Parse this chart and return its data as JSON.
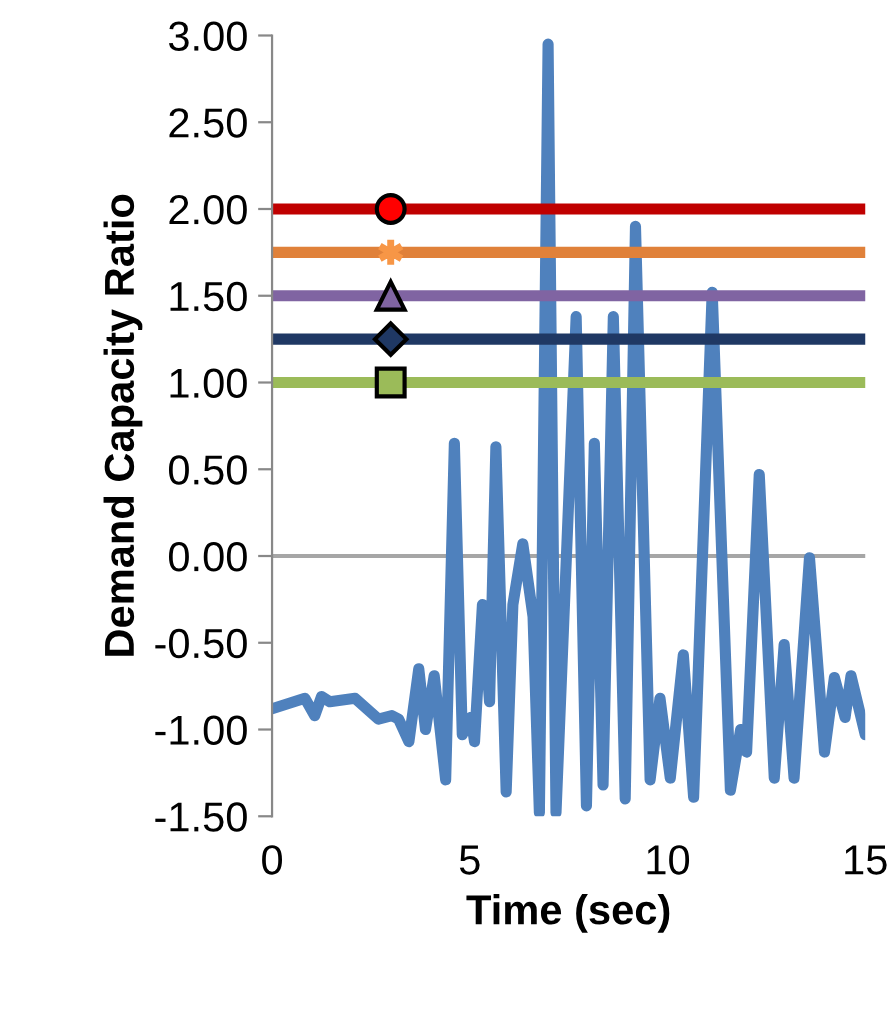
{
  "chart_data": {
    "type": "line",
    "xlabel": "Time (sec)",
    "ylabel": "Demand Capacity Ratio",
    "xlim": [
      0,
      15
    ],
    "xticks": [
      0,
      5,
      10,
      15
    ],
    "ylim": [
      -1.5,
      3.0
    ],
    "yticks": [
      {
        "value": -1.5,
        "label": "-1.50"
      },
      {
        "value": -1.0,
        "label": "-1.00"
      },
      {
        "value": -0.5,
        "label": "-0.50"
      },
      {
        "value": 0,
        "label": "0.00"
      },
      {
        "value": 0.5,
        "label": "0.50"
      },
      {
        "value": 1.0,
        "label": "1.00"
      },
      {
        "value": 1.5,
        "label": "1.50"
      },
      {
        "value": 2.0,
        "label": "2.00"
      },
      {
        "value": 2.5,
        "label": "2.50"
      },
      {
        "value": 3.0,
        "label": "3.00"
      }
    ],
    "grid": false,
    "legend": false,
    "ref_lines": [
      {
        "axis": "y",
        "value": 0,
        "label": null,
        "color": "#a6a6a6"
      }
    ],
    "series": [
      {
        "color": "#4f81bd",
        "marker": "none",
        "x": [
          0,
          0.83,
          1.08,
          1.25,
          1.46,
          2.1,
          2.69,
          3.03,
          3.2,
          3.46,
          3.71,
          3.88,
          4.1,
          4.39,
          4.61,
          4.81,
          5.03,
          5.12,
          5.32,
          5.5,
          5.66,
          5.92,
          6.09,
          6.34,
          6.6,
          6.76,
          6.98,
          7.18,
          7.69,
          7.95,
          8.15,
          8.37,
          8.63,
          8.93,
          9.19,
          9.56,
          9.81,
          10.07,
          10.4,
          10.66,
          11.13,
          11.59,
          11.85,
          12.0,
          12.32,
          12.7,
          12.95,
          13.2,
          13.59,
          13.97,
          14.22,
          14.49,
          14.64,
          15.0
        ],
        "values": [
          -0.88,
          -0.82,
          -0.92,
          -0.81,
          -0.84,
          -0.82,
          -0.94,
          -0.92,
          -0.94,
          -1.07,
          -0.65,
          -1.0,
          -0.69,
          -1.29,
          0.65,
          -1.03,
          -0.93,
          -1.07,
          -0.28,
          -0.84,
          0.63,
          -1.36,
          -0.28,
          0.07,
          -0.35,
          -1.48,
          2.95,
          -1.48,
          1.38,
          -1.44,
          0.65,
          -1.32,
          1.38,
          -1.4,
          1.9,
          -1.29,
          -0.82,
          -1.28,
          -0.57,
          -1.39,
          1.52,
          -1.35,
          -1.0,
          -1.13,
          0.47,
          -1.28,
          -0.51,
          -1.28,
          -0.01,
          -1.13,
          -0.7,
          -0.93,
          -0.69,
          -1.03
        ]
      },
      {
        "color": "#c00000",
        "marker": "none",
        "x": [
          0,
          15
        ],
        "values": [
          2.0,
          2.0
        ]
      },
      {
        "color": "#e0813a",
        "marker": "none",
        "x": [
          0,
          15
        ],
        "values": [
          1.75,
          1.75
        ]
      },
      {
        "color": "#8064a2",
        "marker": "none",
        "x": [
          0,
          15
        ],
        "values": [
          1.5,
          1.5
        ]
      },
      {
        "color": "#1f3864",
        "marker": "none",
        "x": [
          0,
          15
        ],
        "values": [
          1.25,
          1.25
        ]
      },
      {
        "color": "#9bbb59",
        "marker": "none",
        "x": [
          0,
          15
        ],
        "values": [
          1.0,
          1.0
        ]
      },
      {
        "type": "scatter",
        "color": "#ff0000",
        "marker": "circle",
        "x": [
          3
        ],
        "values": [
          2.0
        ]
      },
      {
        "type": "scatter",
        "color": "#f79646",
        "marker": "cross",
        "x": [
          3
        ],
        "values": [
          1.75
        ]
      },
      {
        "type": "scatter",
        "color": "#8064a2",
        "marker": "triangle",
        "x": [
          3
        ],
        "values": [
          1.5
        ]
      },
      {
        "type": "scatter",
        "color": "#1f3864",
        "marker": "diamond",
        "x": [
          3
        ],
        "values": [
          1.25
        ]
      },
      {
        "type": "scatter",
        "color": "#9bbb59",
        "marker": "square",
        "x": [
          3
        ],
        "values": [
          1.0
        ]
      }
    ]
  }
}
